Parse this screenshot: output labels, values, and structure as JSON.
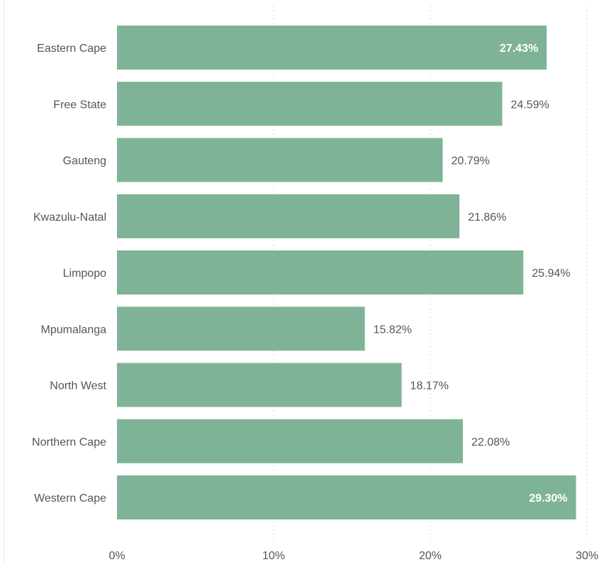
{
  "chart_data": {
    "type": "bar",
    "orientation": "horizontal",
    "categories": [
      "Eastern Cape",
      "Free State",
      "Gauteng",
      "Kwazulu-Natal",
      "Limpopo",
      "Mpumalanga",
      "North West",
      "Northern Cape",
      "Western Cape"
    ],
    "values": [
      27.43,
      24.59,
      20.79,
      21.86,
      25.94,
      15.82,
      18.17,
      22.08,
      29.3
    ],
    "value_labels": [
      "27.43%",
      "24.59%",
      "20.79%",
      "21.86%",
      "25.94%",
      "15.82%",
      "18.17%",
      "22.08%",
      "29.30%"
    ],
    "x_ticks": [
      0,
      10,
      20,
      30
    ],
    "x_tick_labels": [
      "0%",
      "10%",
      "20%",
      "30%"
    ],
    "xlim": [
      0,
      30
    ],
    "title": "",
    "xlabel": "",
    "ylabel": "",
    "grid": true,
    "bar_color": "#7fb397",
    "label_inside_color": "#ffffff",
    "label_outside_color": "#555555"
  }
}
